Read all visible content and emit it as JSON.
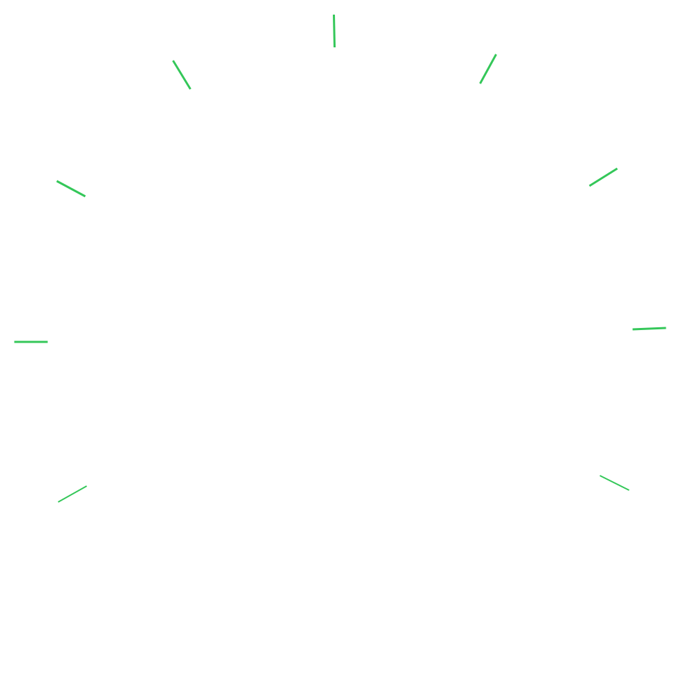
{
  "background_color": "#ffffff",
  "tick_color": "#34c759",
  "ticks": [
    {
      "label": "tick-top"
    },
    {
      "label": "tick-upper-right-1"
    },
    {
      "label": "tick-upper-right-2"
    },
    {
      "label": "tick-right"
    },
    {
      "label": "tick-lower-right"
    },
    {
      "label": "tick-lower-left"
    },
    {
      "label": "tick-left"
    },
    {
      "label": "tick-upper-left-2"
    },
    {
      "label": "tick-upper-left-1"
    }
  ]
}
